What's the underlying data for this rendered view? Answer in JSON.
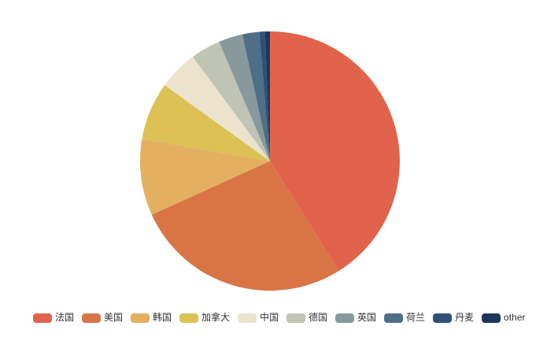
{
  "chart_data": {
    "type": "pie",
    "categories": [
      "法国",
      "美国",
      "韩国",
      "加拿大",
      "中国",
      "德国",
      "英国",
      "荷兰",
      "丹麦",
      "other"
    ],
    "values": [
      41,
      27,
      9.5,
      7.2,
      4.9,
      3.7,
      3.0,
      2.1,
      0.7,
      0.6
    ],
    "colors": [
      "#e2634b",
      "#d97545",
      "#e3b062",
      "#dcc155",
      "#ebe3cc",
      "#c0c4b4",
      "#87999c",
      "#4f6e87",
      "#2e5175",
      "#1b365d"
    ],
    "legend": "bottom"
  }
}
